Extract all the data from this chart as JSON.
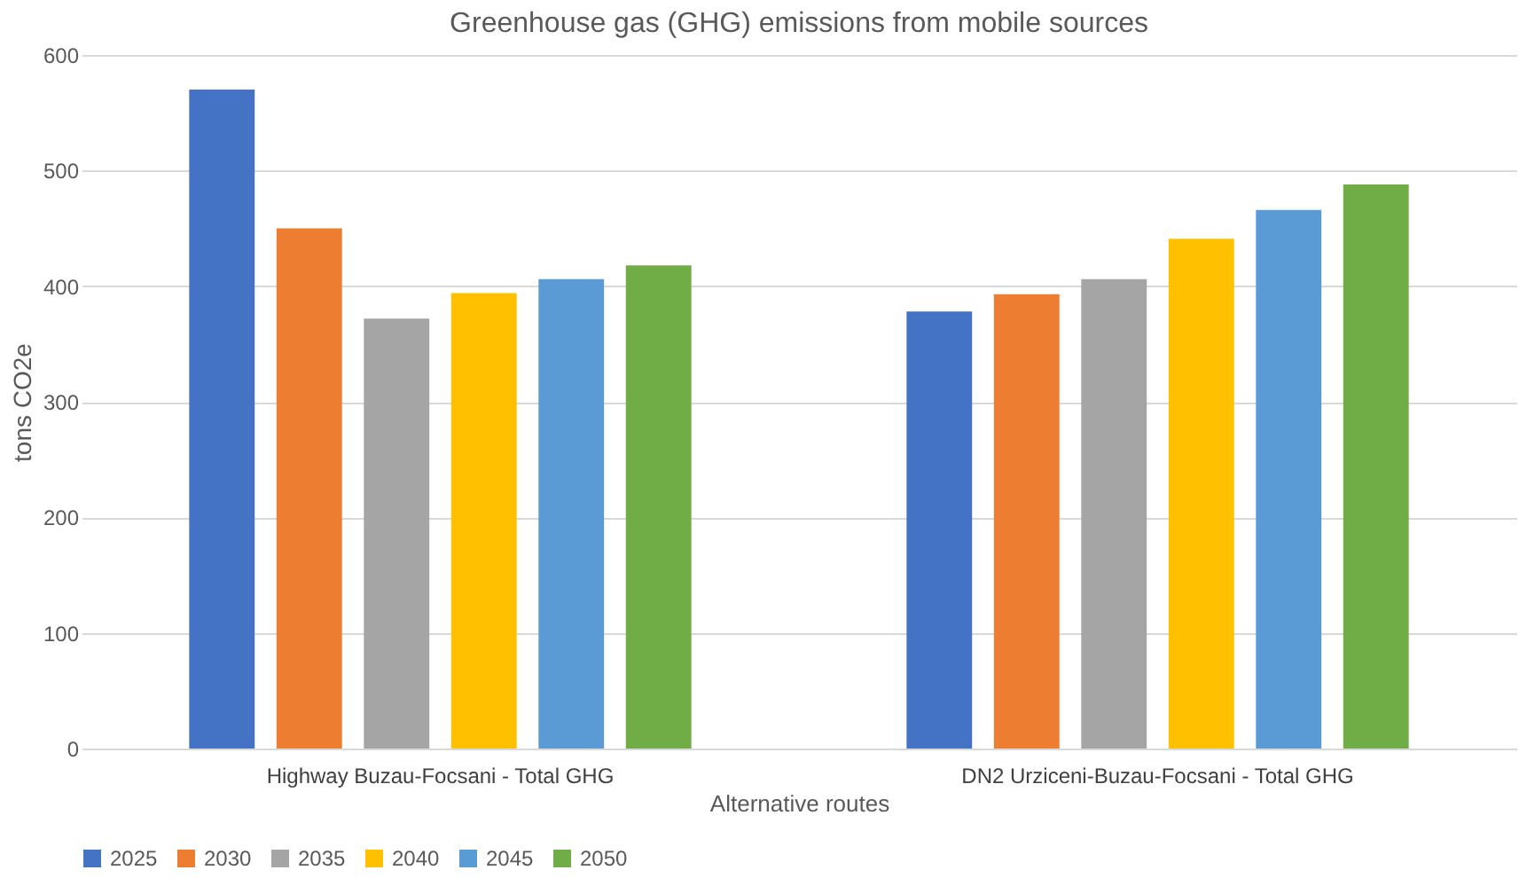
{
  "chart_data": {
    "type": "bar",
    "title": "Greenhouse gas (GHG) emissions from mobile sources",
    "xlabel": "Alternative routes",
    "ylabel": "tons CO2e",
    "categories": [
      "Highway Buzau-Focsani - Total GHG",
      "DN2 Urziceni-Buzau-Focsani - Total GHG"
    ],
    "series": [
      {
        "name": "2025",
        "color": "#4472c4",
        "values": [
          570,
          378
        ]
      },
      {
        "name": "2030",
        "color": "#ed7d31",
        "values": [
          450,
          393
        ]
      },
      {
        "name": "2035",
        "color": "#a5a5a5",
        "values": [
          372,
          406
        ]
      },
      {
        "name": "2040",
        "color": "#ffc000",
        "values": [
          394,
          441
        ]
      },
      {
        "name": "2045",
        "color": "#5b9bd5",
        "values": [
          406,
          466
        ]
      },
      {
        "name": "2050",
        "color": "#70ad47",
        "values": [
          418,
          488
        ]
      }
    ],
    "ylim": [
      0,
      600
    ],
    "yticks": [
      0,
      100,
      200,
      300,
      400,
      500,
      600
    ],
    "grid": "y",
    "legend": "bottom"
  }
}
